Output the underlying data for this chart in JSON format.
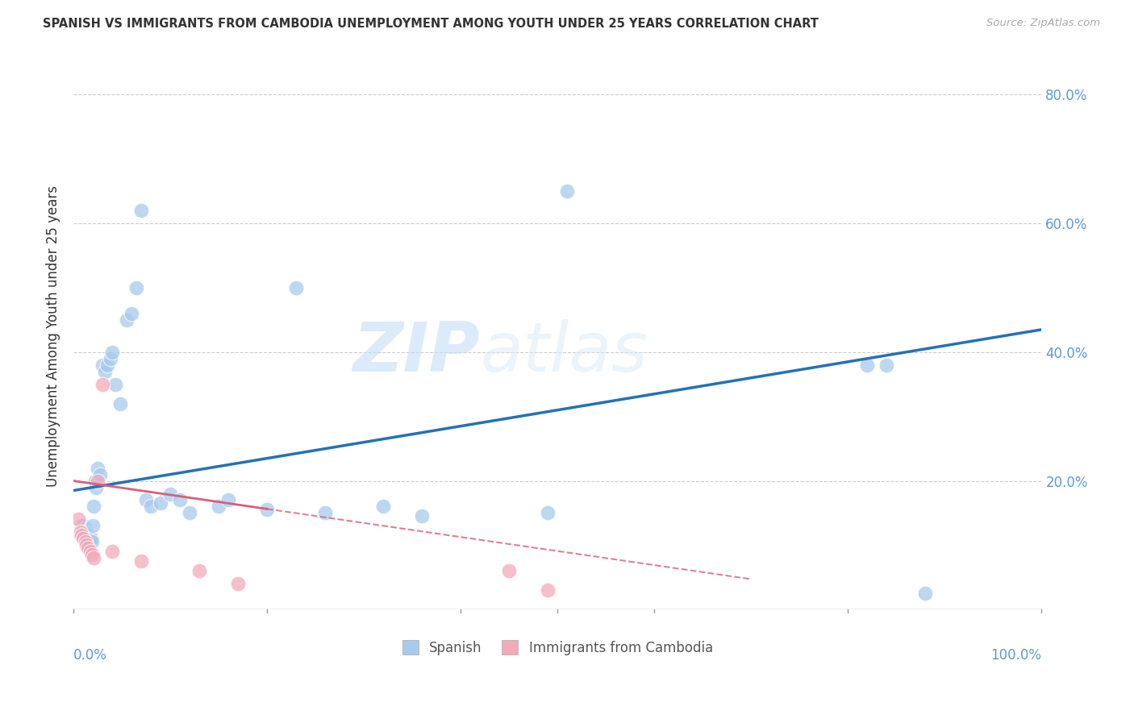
{
  "title": "SPANISH VS IMMIGRANTS FROM CAMBODIA UNEMPLOYMENT AMONG YOUTH UNDER 25 YEARS CORRELATION CHART",
  "source": "Source: ZipAtlas.com",
  "ylabel": "Unemployment Among Youth under 25 years",
  "yticks": [
    0.0,
    0.2,
    0.4,
    0.6,
    0.8
  ],
  "ytick_labels": [
    "",
    "20.0%",
    "40.0%",
    "60.0%",
    "80.0%"
  ],
  "xlim": [
    0.0,
    1.0
  ],
  "ylim": [
    0.0,
    0.85
  ],
  "blue_color": "#A8CAEC",
  "pink_color": "#F2AABB",
  "line_blue": "#2471B8",
  "line_pink": "#D9607A",
  "watermark_zip": "ZIP",
  "watermark_atlas": "atlas",
  "spanish_x": [
    0.005,
    0.007,
    0.008,
    0.009,
    0.01,
    0.012,
    0.013,
    0.014,
    0.015,
    0.016,
    0.017,
    0.018,
    0.019,
    0.02,
    0.021,
    0.022,
    0.023,
    0.025,
    0.027,
    0.03,
    0.032,
    0.035,
    0.038,
    0.04,
    0.043,
    0.048,
    0.055,
    0.06,
    0.065,
    0.07,
    0.075,
    0.08,
    0.09,
    0.1,
    0.11,
    0.12,
    0.15,
    0.16,
    0.2,
    0.23,
    0.26,
    0.32,
    0.36,
    0.49,
    0.51,
    0.82,
    0.84,
    0.88
  ],
  "spanish_y": [
    0.12,
    0.125,
    0.13,
    0.115,
    0.13,
    0.125,
    0.12,
    0.118,
    0.115,
    0.11,
    0.108,
    0.11,
    0.105,
    0.13,
    0.16,
    0.2,
    0.19,
    0.22,
    0.21,
    0.38,
    0.37,
    0.38,
    0.39,
    0.4,
    0.35,
    0.32,
    0.45,
    0.46,
    0.5,
    0.62,
    0.17,
    0.16,
    0.165,
    0.18,
    0.17,
    0.15,
    0.16,
    0.17,
    0.155,
    0.5,
    0.15,
    0.16,
    0.145,
    0.15,
    0.65,
    0.38,
    0.38,
    0.025
  ],
  "cambodia_x": [
    0.005,
    0.007,
    0.008,
    0.01,
    0.012,
    0.013,
    0.015,
    0.017,
    0.019,
    0.021,
    0.025,
    0.03,
    0.04,
    0.07,
    0.13,
    0.17,
    0.45,
    0.49
  ],
  "cambodia_y": [
    0.14,
    0.12,
    0.115,
    0.11,
    0.105,
    0.1,
    0.095,
    0.09,
    0.085,
    0.08,
    0.2,
    0.35,
    0.09,
    0.075,
    0.06,
    0.04,
    0.06,
    0.03
  ],
  "blue_line_x": [
    0.0,
    1.0
  ],
  "blue_line_y": [
    0.185,
    0.435
  ],
  "pink_line_x": [
    0.0,
    0.55
  ],
  "pink_line_y": [
    0.2,
    0.08
  ]
}
